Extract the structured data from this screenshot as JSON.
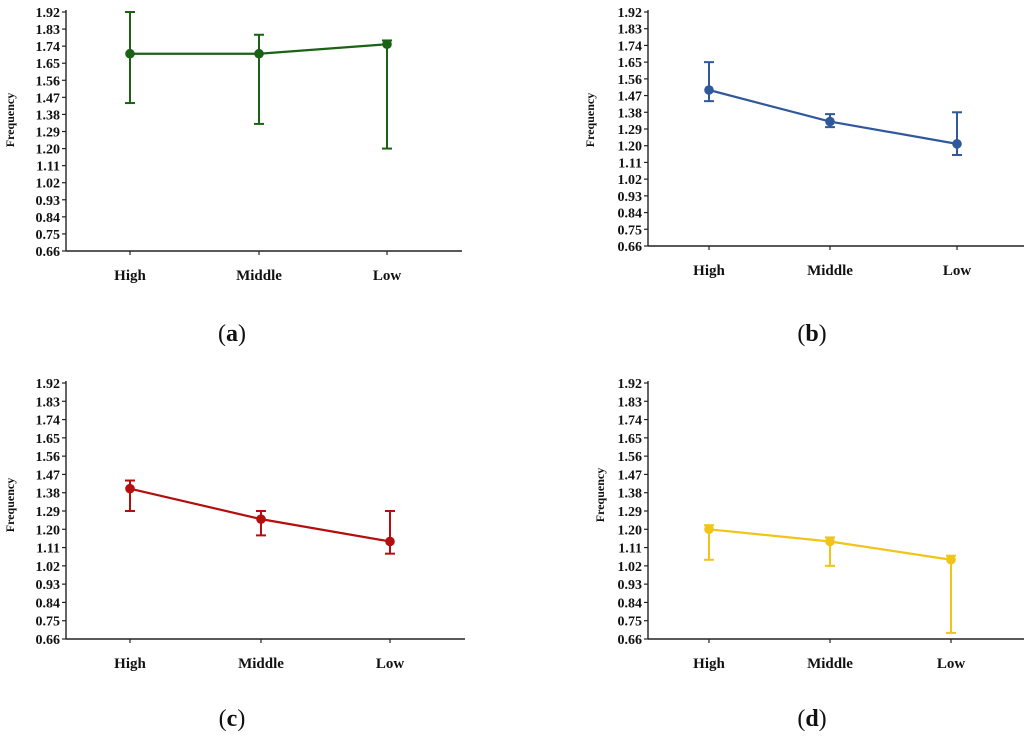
{
  "chart_data": [
    {
      "type": "line",
      "panel": "a",
      "color": "#1a6214",
      "ylabel": "Frequency",
      "yticks": [
        "0.66",
        "0.75",
        "0.84",
        "0.93",
        "1.02",
        "1.11",
        "1.20",
        "1.29",
        "1.38",
        "1.47",
        "1.56",
        "1.65",
        "1.74",
        "1.83",
        "1.92"
      ],
      "ylim": [
        0.66,
        1.92
      ],
      "categories": [
        "High",
        "Middle",
        "Low"
      ],
      "values": [
        1.7,
        1.7,
        1.75
      ],
      "err_low": [
        1.44,
        1.33,
        1.2
      ],
      "err_high": [
        1.92,
        1.8,
        1.77
      ]
    },
    {
      "type": "line",
      "panel": "b",
      "color": "#30599b",
      "ylabel": "Frequency",
      "yticks": [
        "0.66",
        "0.75",
        "0.84",
        "0.93",
        "1.02",
        "1.11",
        "1.20",
        "1.29",
        "1.38",
        "1.47",
        "1.56",
        "1.65",
        "1.74",
        "1.83",
        "1.92"
      ],
      "ylim": [
        0.66,
        1.92
      ],
      "categories": [
        "High",
        "Middle",
        "Low"
      ],
      "values": [
        1.5,
        1.33,
        1.21
      ],
      "err_low": [
        1.44,
        1.3,
        1.15
      ],
      "err_high": [
        1.65,
        1.37,
        1.38
      ]
    },
    {
      "type": "line",
      "panel": "c",
      "color": "#b40e0e",
      "ylabel": "Frequency",
      "yticks": [
        "0.66",
        "0.75",
        "0.84",
        "0.93",
        "1.02",
        "1.11",
        "1.20",
        "1.29",
        "1.38",
        "1.47",
        "1.56",
        "1.65",
        "1.74",
        "1.83",
        "1.92"
      ],
      "ylim": [
        0.66,
        1.92
      ],
      "categories": [
        "High",
        "Middle",
        "Low"
      ],
      "values": [
        1.4,
        1.25,
        1.14
      ],
      "err_low": [
        1.29,
        1.17,
        1.08
      ],
      "err_high": [
        1.44,
        1.29,
        1.29
      ]
    },
    {
      "type": "line",
      "panel": "d",
      "color": "#f0c419",
      "ylabel": "Frequency",
      "yticks": [
        "0.66",
        "0.75",
        "0.84",
        "0.93",
        "1.02",
        "1.11",
        "1.20",
        "1.29",
        "1.38",
        "1.47",
        "1.56",
        "1.65",
        "1.74",
        "1.83",
        "1.92"
      ],
      "ylim": [
        0.66,
        1.92
      ],
      "categories": [
        "High",
        "Middle",
        "Low"
      ],
      "values": [
        1.2,
        1.14,
        1.05
      ],
      "err_low": [
        1.05,
        1.02,
        0.69
      ],
      "err_high": [
        1.22,
        1.16,
        1.07
      ]
    }
  ],
  "panel_labels": [
    {
      "open": "(",
      "letter": "a",
      "close": ")"
    },
    {
      "open": "(",
      "letter": "b",
      "close": ")"
    },
    {
      "open": "(",
      "letter": "c",
      "close": ")"
    },
    {
      "open": "(",
      "letter": "d",
      "close": ")"
    }
  ]
}
